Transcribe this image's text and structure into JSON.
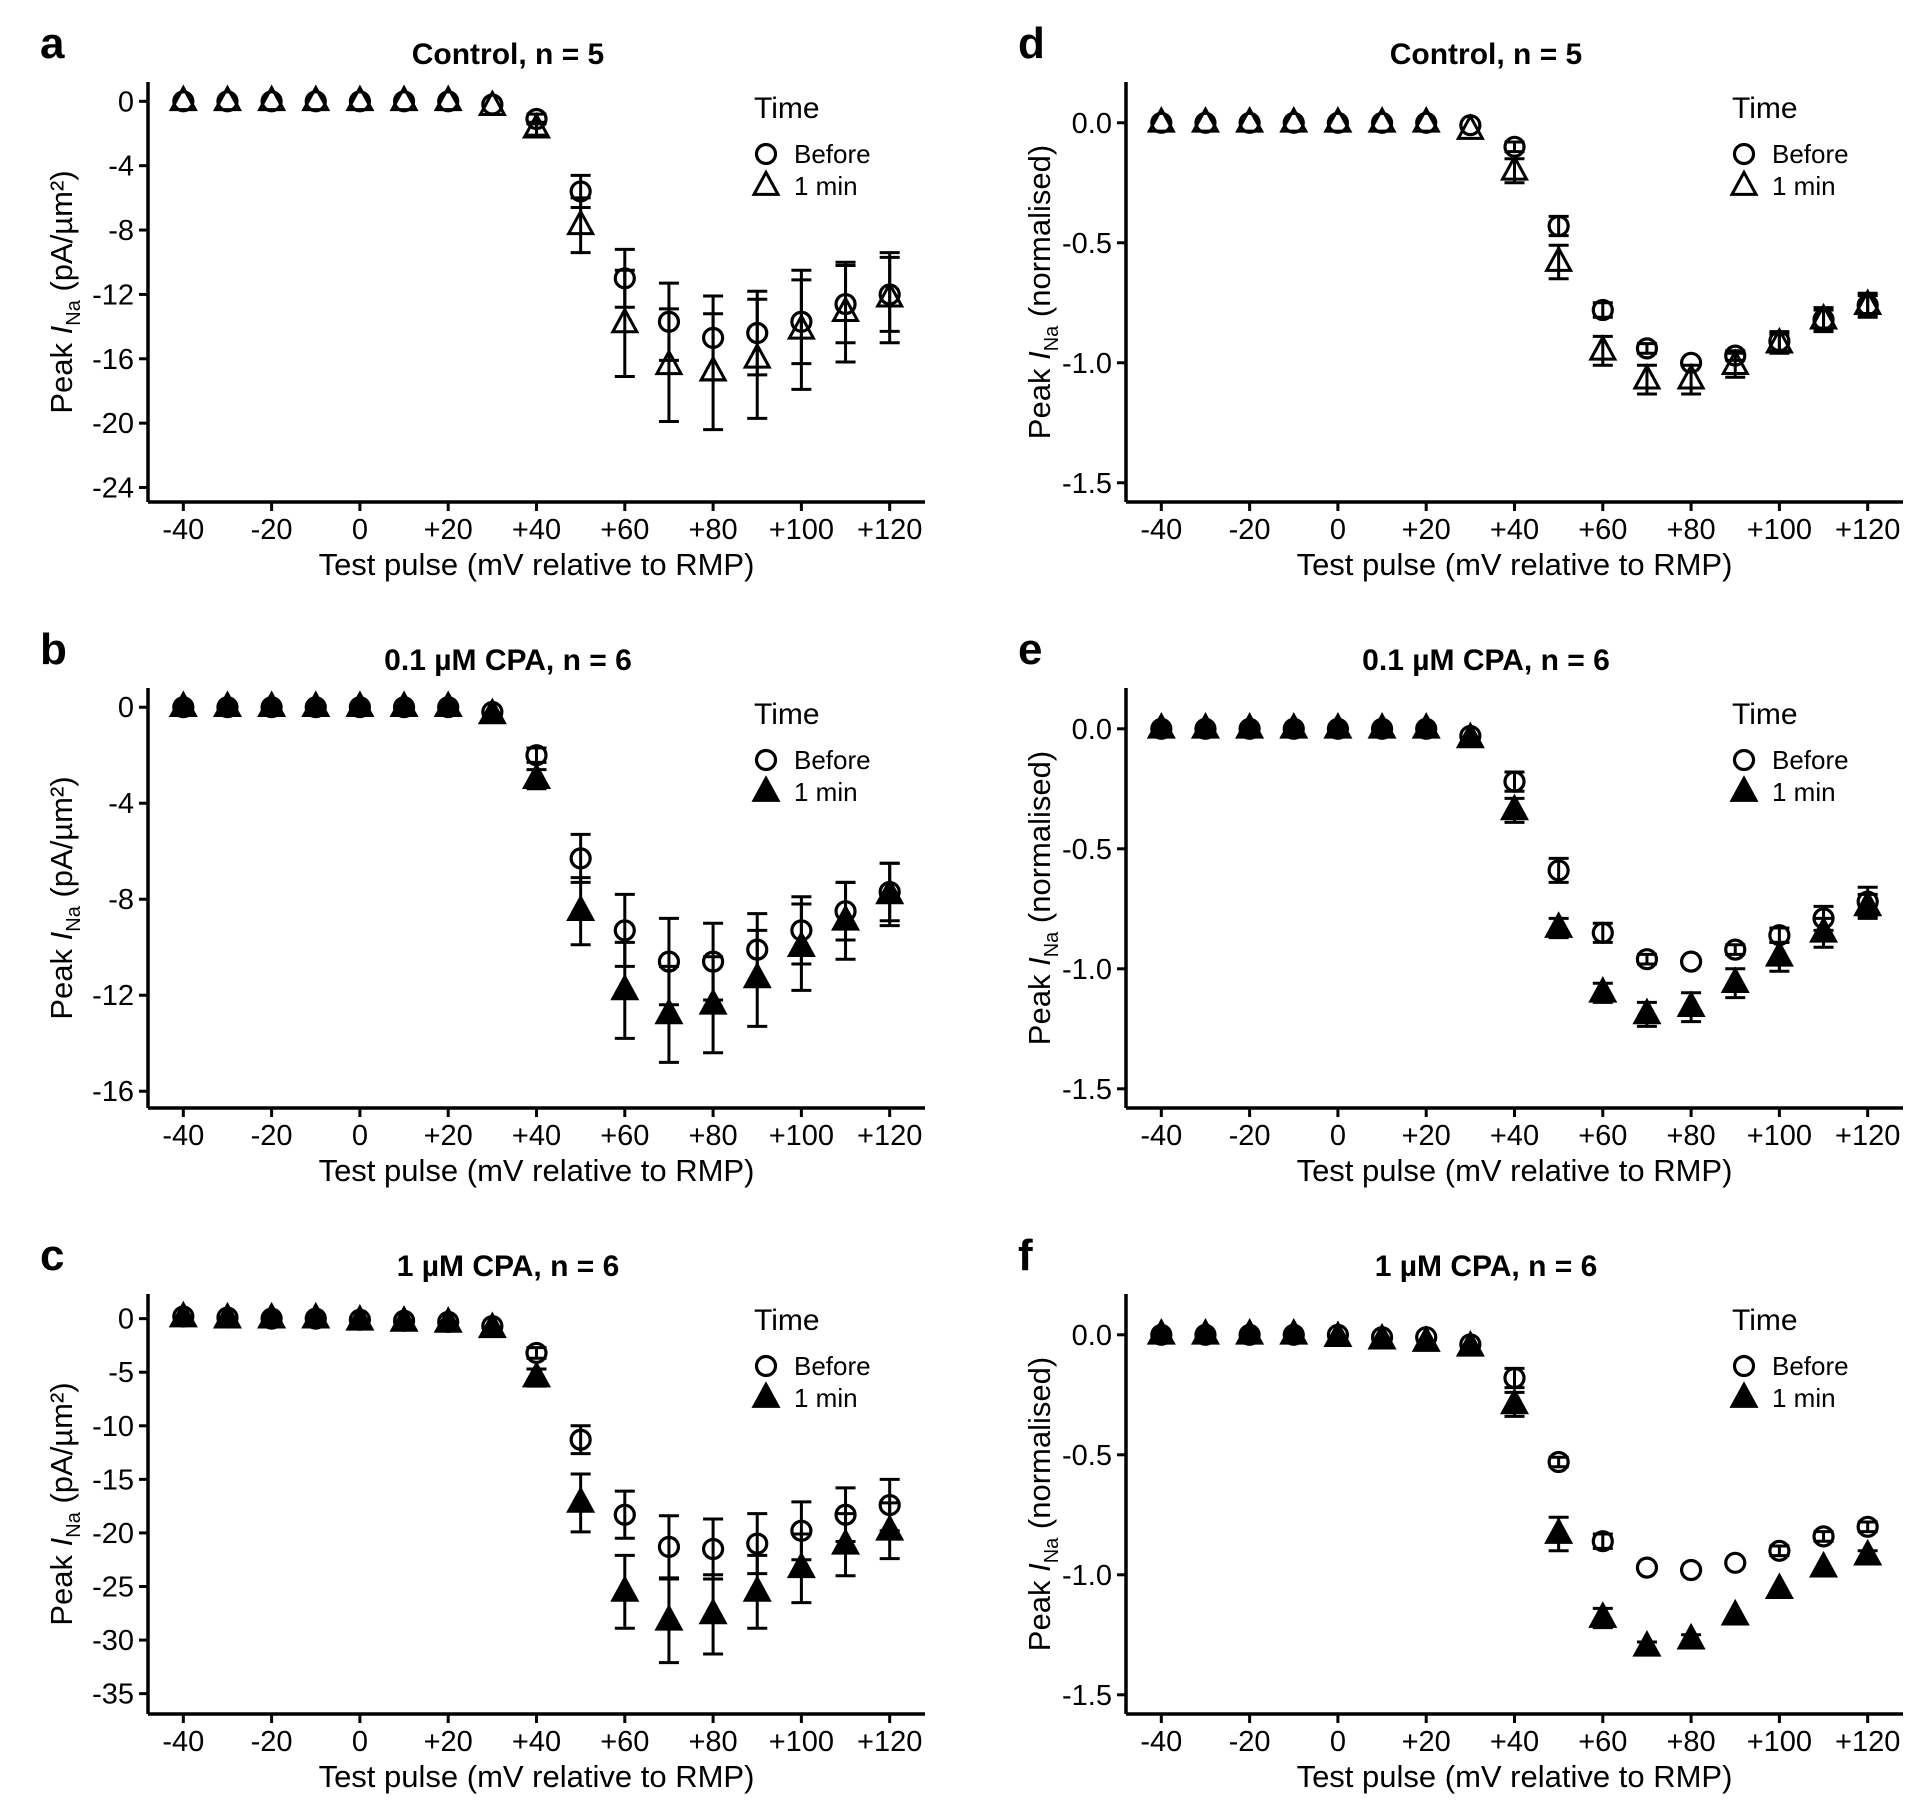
{
  "chart_data": [
    {
      "panel": "a",
      "type": "scatter",
      "title": "Control, n = 5",
      "xlabel": "Test pulse (mV relative to RMP)",
      "ylabel": "Peak I_Na (pA/µm²)",
      "ylabel_parts": {
        "prefix": "Peak ",
        "italic": "I",
        "sub": "Na",
        "suffix": " (pA/µm²)"
      },
      "xlim": [
        -48,
        128
      ],
      "ylim": [
        -24.9,
        1.2
      ],
      "xticks": [
        -40,
        -20,
        0,
        20,
        40,
        60,
        80,
        100,
        120
      ],
      "xtick_labels": [
        "-40",
        "-20",
        "0",
        "+20",
        "+40",
        "+60",
        "+80",
        "+100",
        "+120"
      ],
      "yticks": [
        0,
        -4,
        -8,
        -12,
        -16,
        -20,
        -24
      ],
      "ytick_labels": [
        "0",
        "-4",
        "-8",
        "-12",
        "-16",
        "-20",
        "-24"
      ],
      "legend": {
        "title": "Time",
        "position": "top-right"
      },
      "x": [
        -40,
        -30,
        -20,
        -10,
        0,
        10,
        20,
        30,
        40,
        50,
        60,
        70,
        80,
        90,
        100,
        110,
        120
      ],
      "series": [
        {
          "name": "Before",
          "marker": "circle-open",
          "values": [
            0,
            0,
            0,
            0,
            0,
            0,
            0,
            -0.2,
            -1.1,
            -5.6,
            -11.0,
            -13.7,
            -14.7,
            -14.4,
            -13.7,
            -12.6,
            -12.0
          ],
          "errors": [
            0.05,
            0.05,
            0.05,
            0.05,
            0.05,
            0.05,
            0.05,
            0.1,
            0.3,
            1.0,
            1.8,
            2.4,
            2.6,
            2.6,
            2.6,
            2.4,
            2.3
          ]
        },
        {
          "name": "1 min",
          "marker": "triangle-open",
          "values": [
            0,
            0,
            0,
            0,
            0,
            0,
            0,
            -0.3,
            -1.7,
            -7.7,
            -13.8,
            -16.4,
            -16.8,
            -16.0,
            -14.2,
            -13.1,
            -12.2
          ],
          "errors": [
            0.05,
            0.05,
            0.05,
            0.05,
            0.05,
            0.05,
            0.05,
            0.1,
            0.4,
            1.7,
            3.3,
            3.5,
            3.6,
            3.7,
            3.7,
            3.1,
            2.8
          ]
        }
      ]
    },
    {
      "panel": "b",
      "type": "scatter",
      "title": "0.1 µM CPA, n = 6",
      "xlabel": "Test pulse (mV relative to RMP)",
      "ylabel": "Peak I_Na (pA/µm²)",
      "ylabel_parts": {
        "prefix": "Peak ",
        "italic": "I",
        "sub": "Na",
        "suffix": " (pA/µm²)"
      },
      "xlim": [
        -48,
        128
      ],
      "ylim": [
        -16.7,
        0.8
      ],
      "xticks": [
        -40,
        -20,
        0,
        20,
        40,
        60,
        80,
        100,
        120
      ],
      "xtick_labels": [
        "-40",
        "-20",
        "0",
        "+20",
        "+40",
        "+60",
        "+80",
        "+100",
        "+120"
      ],
      "yticks": [
        0,
        -4,
        -8,
        -12,
        -16
      ],
      "ytick_labels": [
        "0",
        "-4",
        "-8",
        "-12",
        "-16"
      ],
      "legend": {
        "title": "Time",
        "position": "top-right"
      },
      "x": [
        -40,
        -30,
        -20,
        -10,
        0,
        10,
        20,
        30,
        40,
        50,
        60,
        70,
        80,
        90,
        100,
        110,
        120
      ],
      "series": [
        {
          "name": "Before",
          "marker": "circle-open",
          "values": [
            0,
            0,
            0,
            0,
            0,
            0,
            0,
            -0.2,
            -2.0,
            -6.3,
            -9.3,
            -10.6,
            -10.6,
            -10.1,
            -9.3,
            -8.5,
            -7.7
          ],
          "errors": [
            0.05,
            0.05,
            0.05,
            0.05,
            0.05,
            0.05,
            0.05,
            0.1,
            0.3,
            1.0,
            1.5,
            1.8,
            1.6,
            1.5,
            1.4,
            1.2,
            1.2
          ]
        },
        {
          "name": "1 min",
          "marker": "triangle-filled",
          "values": [
            0,
            0,
            0,
            0,
            0,
            0,
            0,
            -0.3,
            -3.0,
            -8.5,
            -11.8,
            -12.8,
            -12.4,
            -11.3,
            -10.0,
            -8.9,
            -7.8
          ],
          "errors": [
            0.05,
            0.05,
            0.05,
            0.05,
            0.05,
            0.05,
            0.05,
            0.1,
            0.4,
            1.4,
            2.0,
            2.0,
            2.0,
            2.0,
            1.8,
            1.6,
            1.3
          ]
        }
      ]
    },
    {
      "panel": "c",
      "type": "scatter",
      "title": "1 µM CPA, n = 6",
      "xlabel": "Test pulse (mV relative to RMP)",
      "ylabel": "Peak I_Na (pA/µm²)",
      "ylabel_parts": {
        "prefix": "Peak ",
        "italic": "I",
        "sub": "Na",
        "suffix": " (pA/µm²)"
      },
      "xlim": [
        -48,
        128
      ],
      "ylim": [
        -36.9,
        2.3
      ],
      "xticks": [
        -40,
        -20,
        0,
        20,
        40,
        60,
        80,
        100,
        120
      ],
      "xtick_labels": [
        "-40",
        "-20",
        "0",
        "+20",
        "+40",
        "+60",
        "+80",
        "+100",
        "+120"
      ],
      "yticks": [
        0,
        -5,
        -10,
        -15,
        -20,
        -25,
        -30,
        -35
      ],
      "ytick_labels": [
        "0",
        "-5",
        "-10",
        "-15",
        "-20",
        "-25",
        "-30",
        "-35"
      ],
      "legend": {
        "title": "Time",
        "position": "top-right"
      },
      "x": [
        -40,
        -30,
        -20,
        -10,
        0,
        10,
        20,
        30,
        40,
        50,
        60,
        70,
        80,
        90,
        100,
        110,
        120
      ],
      "series": [
        {
          "name": "Before",
          "marker": "circle-open",
          "values": [
            0.2,
            0.1,
            0,
            0,
            -0.1,
            -0.2,
            -0.3,
            -0.7,
            -3.2,
            -11.3,
            -18.3,
            -21.3,
            -21.5,
            -21.0,
            -19.8,
            -18.3,
            -17.4
          ],
          "errors": [
            0.1,
            0.1,
            0.1,
            0.1,
            0.1,
            0.1,
            0.2,
            0.2,
            0.5,
            1.3,
            2.2,
            2.9,
            2.8,
            2.8,
            2.7,
            2.5,
            2.4
          ]
        },
        {
          "name": "1 min",
          "marker": "triangle-filled",
          "values": [
            0.1,
            0,
            0,
            0,
            -0.2,
            -0.3,
            -0.4,
            -0.9,
            -5.5,
            -17.2,
            -25.5,
            -28.2,
            -27.6,
            -25.5,
            -23.3,
            -21.1,
            -19.8
          ],
          "errors": [
            0.1,
            0.1,
            0.1,
            0.1,
            0.1,
            0.1,
            0.2,
            0.2,
            0.8,
            2.7,
            3.4,
            3.9,
            3.7,
            3.4,
            3.2,
            2.9,
            2.6
          ]
        }
      ]
    },
    {
      "panel": "d",
      "type": "scatter",
      "title": "Control, n = 5",
      "xlabel": "Test pulse (mV relative to RMP)",
      "ylabel": "Peak I_Na (normalised)",
      "ylabel_parts": {
        "prefix": "Peak ",
        "italic": "I",
        "sub": "Na",
        "suffix": " (normalised)"
      },
      "xlim": [
        -48,
        128
      ],
      "ylim": [
        -1.58,
        0.17
      ],
      "xticks": [
        -40,
        -20,
        0,
        20,
        40,
        60,
        80,
        100,
        120
      ],
      "xtick_labels": [
        "-40",
        "-20",
        "0",
        "+20",
        "+40",
        "+60",
        "+80",
        "+100",
        "+120"
      ],
      "yticks": [
        0,
        -0.5,
        -1.0,
        -1.5
      ],
      "ytick_labels": [
        "0.0",
        "-0.5",
        "-1.0",
        "-1.5"
      ],
      "legend": {
        "title": "Time",
        "position": "top-right"
      },
      "x": [
        -40,
        -30,
        -20,
        -10,
        0,
        10,
        20,
        30,
        40,
        50,
        60,
        70,
        80,
        90,
        100,
        110,
        120
      ],
      "series": [
        {
          "name": "Before",
          "marker": "circle-open",
          "values": [
            0,
            0,
            0,
            0,
            0,
            0,
            0,
            -0.01,
            -0.1,
            -0.43,
            -0.78,
            -0.94,
            -1.0,
            -0.97,
            -0.91,
            -0.82,
            -0.76
          ],
          "errors": [
            0.005,
            0.005,
            0.005,
            0.005,
            0.005,
            0.005,
            0.005,
            0.01,
            0.02,
            0.04,
            0.03,
            0.02,
            0.01,
            0.02,
            0.04,
            0.05,
            0.05
          ]
        },
        {
          "name": "1 min",
          "marker": "triangle-open",
          "values": [
            0,
            0,
            0,
            0,
            0,
            0,
            0,
            -0.03,
            -0.2,
            -0.58,
            -0.95,
            -1.07,
            -1.07,
            -1.01,
            -0.92,
            -0.82,
            -0.76
          ],
          "errors": [
            0.005,
            0.005,
            0.005,
            0.005,
            0.005,
            0.005,
            0.005,
            0.01,
            0.05,
            0.07,
            0.06,
            0.06,
            0.06,
            0.05,
            0.04,
            0.04,
            0.04
          ]
        }
      ]
    },
    {
      "panel": "e",
      "type": "scatter",
      "title": "0.1 µM CPA, n = 6",
      "xlabel": "Test pulse (mV relative to RMP)",
      "ylabel": "Peak I_Na (normalised)",
      "ylabel_parts": {
        "prefix": "Peak ",
        "italic": "I",
        "sub": "Na",
        "suffix": " (normalised)"
      },
      "xlim": [
        -48,
        128
      ],
      "ylim": [
        -1.58,
        0.17
      ],
      "xticks": [
        -40,
        -20,
        0,
        20,
        40,
        60,
        80,
        100,
        120
      ],
      "xtick_labels": [
        "-40",
        "-20",
        "0",
        "+20",
        "+40",
        "+60",
        "+80",
        "+100",
        "+120"
      ],
      "yticks": [
        0,
        -0.5,
        -1.0,
        -1.5
      ],
      "ytick_labels": [
        "0.0",
        "-0.5",
        "-1.0",
        "-1.5"
      ],
      "legend": {
        "title": "Time",
        "position": "top-right"
      },
      "x": [
        -40,
        -30,
        -20,
        -10,
        0,
        10,
        20,
        30,
        40,
        50,
        60,
        70,
        80,
        90,
        100,
        110,
        120
      ],
      "series": [
        {
          "name": "Before",
          "marker": "circle-open",
          "values": [
            0,
            0,
            0,
            0,
            0,
            0,
            0,
            -0.03,
            -0.22,
            -0.59,
            -0.85,
            -0.96,
            -0.97,
            -0.92,
            -0.86,
            -0.79,
            -0.72
          ],
          "errors": [
            0.005,
            0.005,
            0.005,
            0.005,
            0.005,
            0.005,
            0.005,
            0.01,
            0.04,
            0.05,
            0.04,
            0.02,
            0.01,
            0.02,
            0.03,
            0.05,
            0.06
          ]
        },
        {
          "name": "1 min",
          "marker": "triangle-filled",
          "values": [
            0,
            0,
            0,
            0,
            0,
            0,
            0,
            -0.04,
            -0.34,
            -0.83,
            -1.1,
            -1.19,
            -1.16,
            -1.06,
            -0.95,
            -0.85,
            -0.74
          ],
          "errors": [
            0.005,
            0.005,
            0.005,
            0.005,
            0.005,
            0.005,
            0.005,
            0.01,
            0.05,
            0.04,
            0.04,
            0.05,
            0.06,
            0.06,
            0.06,
            0.06,
            0.05
          ]
        }
      ]
    },
    {
      "panel": "f",
      "type": "scatter",
      "title": "1 µM CPA, n = 6",
      "xlabel": "Test pulse (mV relative to RMP)",
      "ylabel": "Peak I_Na (normalised)",
      "ylabel_parts": {
        "prefix": "Peak ",
        "italic": "I",
        "sub": "Na",
        "suffix": " (normalised)"
      },
      "xlim": [
        -48,
        128
      ],
      "ylim": [
        -1.58,
        0.17
      ],
      "xticks": [
        -40,
        -20,
        0,
        20,
        40,
        60,
        80,
        100,
        120
      ],
      "xtick_labels": [
        "-40",
        "-20",
        "0",
        "+20",
        "+40",
        "+60",
        "+80",
        "+100",
        "+120"
      ],
      "yticks": [
        0,
        -0.5,
        -1.0,
        -1.5
      ],
      "ytick_labels": [
        "0.0",
        "-0.5",
        "-1.0",
        "-1.5"
      ],
      "legend": {
        "title": "Time",
        "position": "top-right"
      },
      "x": [
        -40,
        -30,
        -20,
        -10,
        0,
        10,
        20,
        30,
        40,
        50,
        60,
        70,
        80,
        90,
        100,
        110,
        120
      ],
      "series": [
        {
          "name": "Before",
          "marker": "circle-open",
          "values": [
            0,
            0,
            0,
            0,
            0,
            -0.01,
            -0.01,
            -0.04,
            -0.18,
            -0.53,
            -0.86,
            -0.97,
            -0.98,
            -0.95,
            -0.9,
            -0.84,
            -0.8
          ],
          "errors": [
            0.005,
            0.005,
            0.005,
            0.005,
            0.005,
            0.005,
            0.01,
            0.01,
            0.04,
            0.02,
            0.03,
            0.01,
            0.01,
            0.01,
            0.02,
            0.02,
            0.02
          ]
        },
        {
          "name": "1 min",
          "marker": "triangle-filled",
          "values": [
            0,
            0,
            0,
            0,
            -0.01,
            -0.02,
            -0.03,
            -0.05,
            -0.29,
            -0.83,
            -1.18,
            -1.3,
            -1.27,
            -1.17,
            -1.06,
            -0.97,
            -0.92
          ],
          "errors": [
            0.005,
            0.005,
            0.005,
            0.005,
            0.005,
            0.01,
            0.01,
            0.01,
            0.05,
            0.07,
            0.04,
            0.02,
            0.02,
            0.01,
            0.01,
            0.01,
            0.02
          ]
        }
      ]
    }
  ]
}
